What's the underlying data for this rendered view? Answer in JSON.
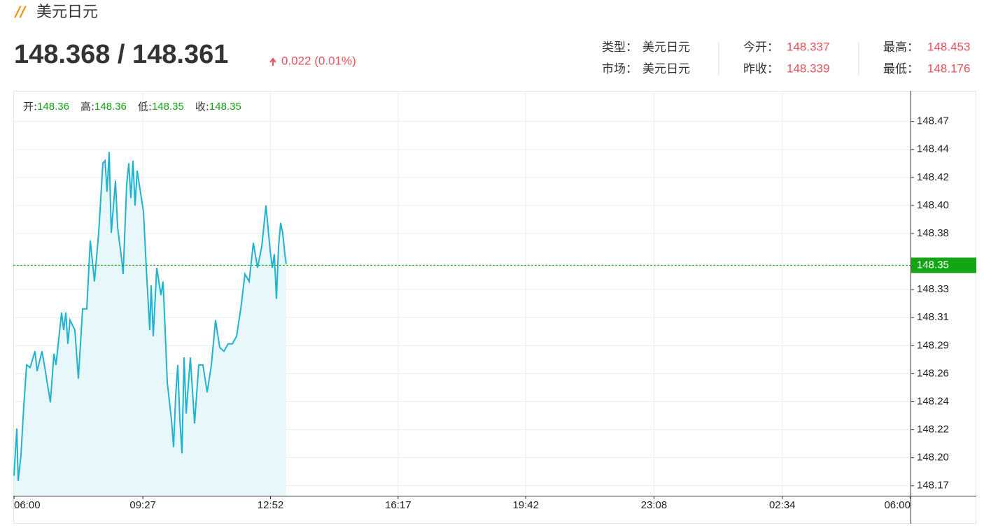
{
  "header": {
    "title": "美元日元",
    "price": "148.368 / 148.361",
    "change": "0.022 (0.01%)"
  },
  "info": {
    "rows": [
      [
        {
          "label": "类型：",
          "value": "美元日元"
        },
        {
          "label": "今开：",
          "value": "148.337"
        },
        {
          "label": "最高：",
          "value": "148.453"
        }
      ],
      [
        {
          "label": "市场：",
          "value": "美元日元"
        },
        {
          "label": "昨收：",
          "value": "148.339"
        },
        {
          "label": "最低：",
          "value": "148.176"
        }
      ]
    ]
  },
  "chart_data": {
    "type": "line",
    "ohlc": [
      {
        "label": "开:",
        "value": 148.36
      },
      {
        "label": "高:",
        "value": 148.36
      },
      {
        "label": "低:",
        "value": 148.35
      },
      {
        "label": "收:",
        "value": 148.35
      }
    ],
    "x": [
      0,
      4.5,
      6.7,
      11.2,
      15.7,
      20.2,
      25.9,
      33.7,
      37.1,
      45.0,
      49.5,
      58.5,
      64.1,
      67.4,
      76.4,
      79.8,
      83.2,
      86.6,
      89.9,
      97.8,
      103.4,
      110.2,
      116.9,
      122.5,
      129.3,
      136.0,
      142.8,
      146.1,
      149.5,
      152.9,
      156.2,
      163.0,
      166.4,
      173.1,
      175.4,
      181.0,
      184.4,
      187.7,
      191.1,
      194.5,
      197.8,
      204.6,
      208.0,
      212.5,
      218.1,
      220.3,
      223.7,
      229.3,
      236.1,
      239.4,
      242.8,
      246.2,
      252.9,
      256.3,
      259.7,
      263.0,
      266.4,
      269.8,
      273.2,
      276.5,
      283.3,
      290.0,
      296.8,
      303.5,
      310.3,
      317.0,
      323.7,
      330.5,
      337.2,
      344.0,
      350.7,
      357.5,
      364.2,
      371.0,
      377.7,
      384.4,
      391.2,
      397.9,
      404.7,
      411.4,
      414.8,
      418.2,
      421.5,
      424.9,
      428.3,
      431.7,
      435.0,
      437.3
    ],
    "series": [
      {
        "color": "#1fb3cf",
        "area_color": "#e8f8fa",
        "values": [
          148.182,
          148.22,
          148.178,
          148.199,
          148.238,
          148.271,
          148.269,
          148.282,
          148.266,
          148.282,
          148.269,
          148.241,
          148.28,
          148.271,
          148.313,
          148.299,
          148.313,
          148.288,
          148.307,
          148.299,
          148.26,
          148.316,
          148.316,
          148.371,
          148.338,
          148.377,
          148.433,
          148.435,
          148.41,
          148.442,
          148.377,
          148.419,
          148.382,
          148.355,
          148.344,
          148.416,
          148.433,
          148.405,
          148.435,
          148.399,
          148.427,
          148.405,
          148.394,
          148.349,
          148.299,
          148.335,
          148.294,
          148.349,
          148.327,
          148.338,
          148.299,
          148.257,
          148.227,
          148.205,
          148.246,
          148.271,
          148.227,
          148.2,
          148.277,
          148.232,
          148.277,
          148.224,
          148.271,
          148.271,
          148.249,
          148.271,
          148.307,
          148.285,
          148.282,
          148.288,
          148.288,
          148.294,
          148.316,
          148.344,
          148.338,
          148.369,
          148.349,
          148.366,
          148.399,
          148.363,
          148.349,
          148.36,
          148.324,
          148.366,
          148.385,
          148.377,
          148.36,
          148.352
        ]
      }
    ],
    "current": {
      "value": 148.351,
      "label": "148.35",
      "color": "#14a514"
    },
    "xlim": [
      0,
      1440
    ],
    "xticks": [
      {
        "value": 0,
        "label": "06:00"
      },
      {
        "value": 207,
        "label": "09:27"
      },
      {
        "value": 412,
        "label": "12:52"
      },
      {
        "value": 617,
        "label": "16:17"
      },
      {
        "value": 822,
        "label": "19:42"
      },
      {
        "value": 1028,
        "label": "23:08"
      },
      {
        "value": 1234,
        "label": "02:34"
      },
      {
        "value": 1440,
        "label": "06:00"
      }
    ],
    "ylim": [
      148.166,
      148.491
    ],
    "yticks": [
      {
        "value": 148.174,
        "label": "148.17"
      },
      {
        "value": 148.1965,
        "label": "148.20"
      },
      {
        "value": 148.219,
        "label": "148.22"
      },
      {
        "value": 148.2415,
        "label": "148.24"
      },
      {
        "value": 148.264,
        "label": "148.26"
      },
      {
        "value": 148.2865,
        "label": "148.29"
      },
      {
        "value": 148.309,
        "label": "148.31"
      },
      {
        "value": 148.3315,
        "label": "148.33"
      },
      {
        "value": 148.3765,
        "label": "148.38"
      },
      {
        "value": 148.399,
        "label": "148.40"
      },
      {
        "value": 148.4215,
        "label": "148.42"
      },
      {
        "value": 148.444,
        "label": "148.44"
      },
      {
        "value": 148.4665,
        "label": "148.47"
      }
    ],
    "grid": true
  }
}
